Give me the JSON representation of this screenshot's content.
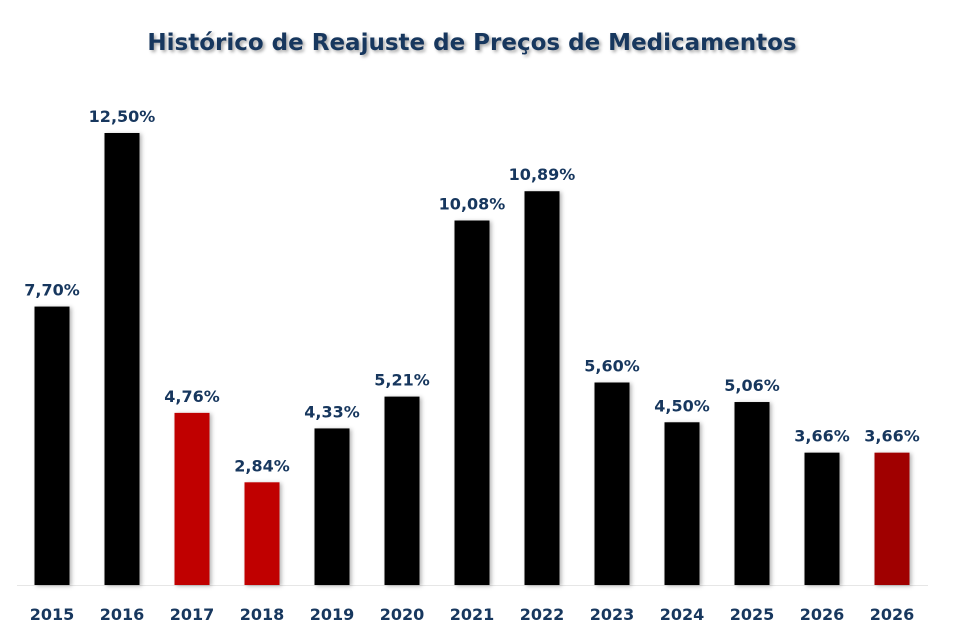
{
  "chart_data": {
    "type": "bar",
    "title": "Histórico de Reajuste de Preços de Medicamentos",
    "xlabel": "",
    "ylabel": "",
    "ylim": [
      0,
      12.5
    ],
    "grid": false,
    "legend": "none",
    "categories": [
      "2015",
      "2016",
      "2017",
      "2018",
      "2019",
      "2020",
      "2021",
      "2022",
      "2023",
      "2024",
      "2025",
      "2026",
      "2026"
    ],
    "values": [
      7.7,
      12.5,
      4.76,
      2.84,
      4.33,
      5.21,
      10.08,
      10.89,
      5.6,
      4.5,
      5.06,
      3.66,
      3.66
    ],
    "labels": [
      "7,70%",
      "12,50%",
      "4,76%",
      "2,84%",
      "4,33%",
      "5,21%",
      "10,08%",
      "10,89%",
      "5,60%",
      "4,50%",
      "5,06%",
      "3,66%",
      "3,66%"
    ],
    "colors": [
      "#000000",
      "#000000",
      "#c00000",
      "#c00000",
      "#000000",
      "#000000",
      "#000000",
      "#000000",
      "#000000",
      "#000000",
      "#000000",
      "#000000",
      "#a00000"
    ]
  }
}
